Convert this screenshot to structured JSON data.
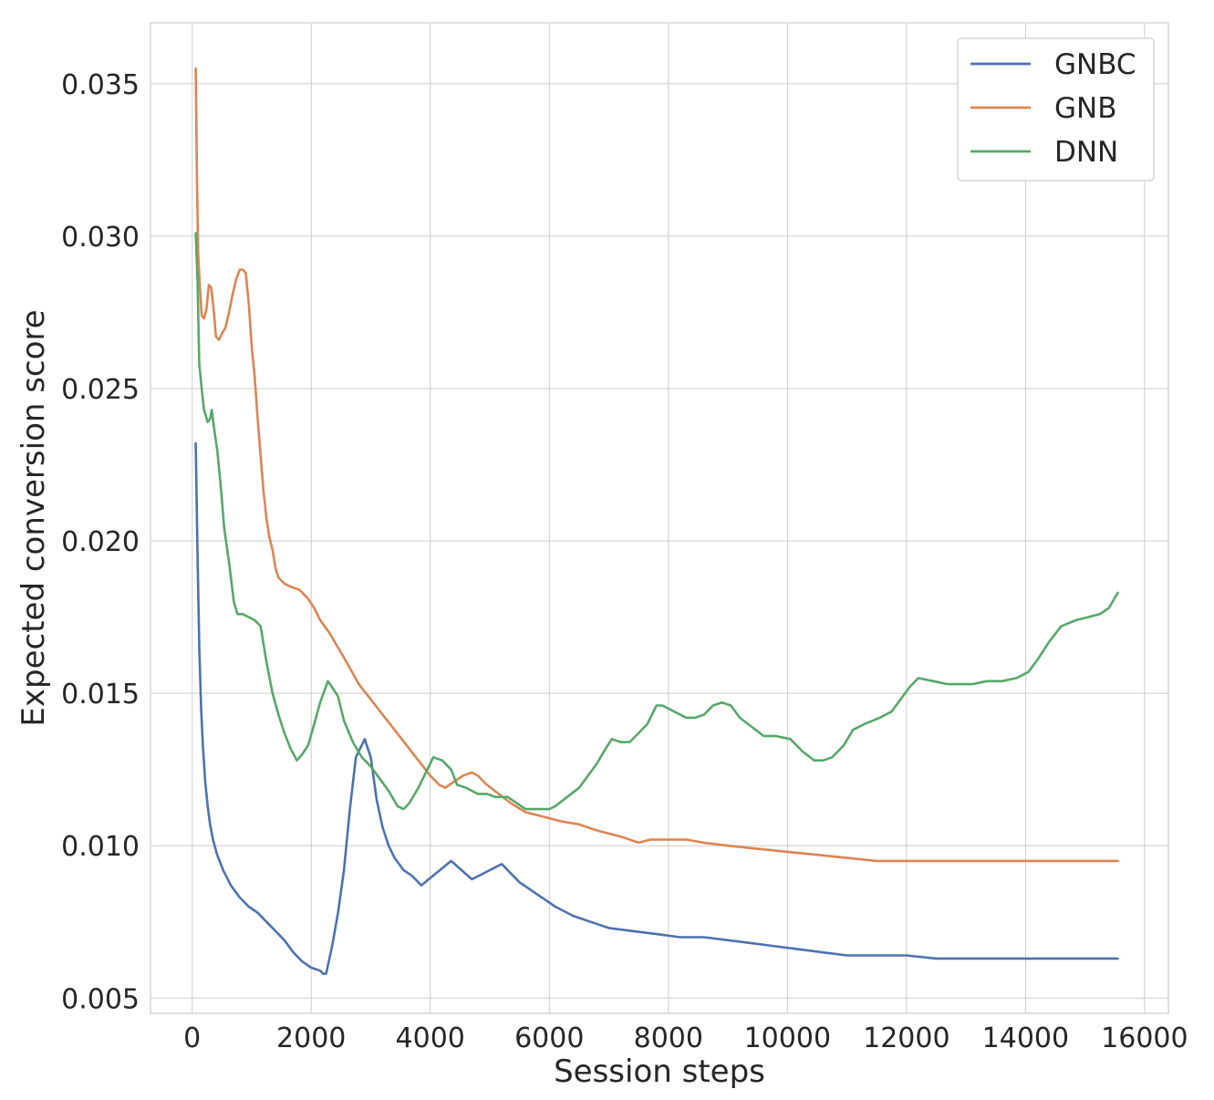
{
  "chart_data": {
    "type": "line",
    "title": "",
    "xlabel": "Session steps",
    "ylabel": "Expected conversion score",
    "xlim": [
      -700,
      16400
    ],
    "ylim": [
      0.0045,
      0.037
    ],
    "xticks": [
      0,
      2000,
      4000,
      6000,
      8000,
      10000,
      12000,
      14000,
      16000
    ],
    "xtick_labels": [
      "0",
      "2000",
      "4000",
      "6000",
      "8000",
      "10000",
      "12000",
      "14000",
      "16000"
    ],
    "yticks": [
      0.005,
      0.01,
      0.015,
      0.02,
      0.025,
      0.03,
      0.035
    ],
    "ytick_labels": [
      "0.005",
      "0.010",
      "0.015",
      "0.020",
      "0.025",
      "0.030",
      "0.035"
    ],
    "grid": true,
    "legend_position": "top-right",
    "series": [
      {
        "name": "GNBC",
        "color": "#4c72b0",
        "points": [
          [
            60,
            0.0232
          ],
          [
            90,
            0.0195
          ],
          [
            120,
            0.0165
          ],
          [
            150,
            0.0145
          ],
          [
            180,
            0.0133
          ],
          [
            220,
            0.0121
          ],
          [
            260,
            0.0113
          ],
          [
            300,
            0.0107
          ],
          [
            350,
            0.0102
          ],
          [
            420,
            0.0097
          ],
          [
            520,
            0.0092
          ],
          [
            650,
            0.0087
          ],
          [
            800,
            0.0083
          ],
          [
            950,
            0.008
          ],
          [
            1100,
            0.0078
          ],
          [
            1250,
            0.0075
          ],
          [
            1400,
            0.0072
          ],
          [
            1550,
            0.0069
          ],
          [
            1700,
            0.0065
          ],
          [
            1850,
            0.0062
          ],
          [
            2000,
            0.006
          ],
          [
            2150,
            0.0059
          ],
          [
            2200,
            0.0058
          ],
          [
            2250,
            0.0058
          ],
          [
            2350,
            0.0067
          ],
          [
            2450,
            0.0078
          ],
          [
            2550,
            0.0092
          ],
          [
            2650,
            0.0112
          ],
          [
            2750,
            0.0129
          ],
          [
            2900,
            0.0135
          ],
          [
            3000,
            0.0129
          ],
          [
            3100,
            0.0115
          ],
          [
            3200,
            0.0106
          ],
          [
            3300,
            0.01
          ],
          [
            3400,
            0.0096
          ],
          [
            3550,
            0.0092
          ],
          [
            3700,
            0.009
          ],
          [
            3850,
            0.0087
          ],
          [
            4100,
            0.0091
          ],
          [
            4350,
            0.0095
          ],
          [
            4700,
            0.0089
          ],
          [
            5200,
            0.0094
          ],
          [
            5500,
            0.0088
          ],
          [
            5800,
            0.0084
          ],
          [
            6100,
            0.008
          ],
          [
            6400,
            0.0077
          ],
          [
            6700,
            0.0075
          ],
          [
            7000,
            0.0073
          ],
          [
            7400,
            0.0072
          ],
          [
            7800,
            0.0071
          ],
          [
            8200,
            0.007
          ],
          [
            8600,
            0.007
          ],
          [
            9000,
            0.0069
          ],
          [
            9400,
            0.0068
          ],
          [
            9800,
            0.0067
          ],
          [
            10200,
            0.0066
          ],
          [
            10600,
            0.0065
          ],
          [
            11000,
            0.0064
          ],
          [
            11500,
            0.0064
          ],
          [
            12000,
            0.0064
          ],
          [
            12500,
            0.0063
          ],
          [
            13000,
            0.0063
          ],
          [
            13500,
            0.0063
          ],
          [
            14000,
            0.0063
          ],
          [
            14500,
            0.0063
          ],
          [
            15000,
            0.0063
          ],
          [
            15550,
            0.0063
          ]
        ]
      },
      {
        "name": "GNB",
        "color": "#dd8452",
        "points": [
          [
            60,
            0.0355
          ],
          [
            80,
            0.032
          ],
          [
            100,
            0.0295
          ],
          [
            130,
            0.0283
          ],
          [
            160,
            0.0274
          ],
          [
            200,
            0.0273
          ],
          [
            240,
            0.0276
          ],
          [
            280,
            0.0284
          ],
          [
            320,
            0.0283
          ],
          [
            360,
            0.0276
          ],
          [
            400,
            0.0267
          ],
          [
            450,
            0.0266
          ],
          [
            500,
            0.0268
          ],
          [
            560,
            0.027
          ],
          [
            620,
            0.0275
          ],
          [
            680,
            0.0281
          ],
          [
            740,
            0.0286
          ],
          [
            800,
            0.0289
          ],
          [
            850,
            0.0289
          ],
          [
            900,
            0.0288
          ],
          [
            950,
            0.0278
          ],
          [
            1000,
            0.0264
          ],
          [
            1050,
            0.0254
          ],
          [
            1100,
            0.024
          ],
          [
            1150,
            0.0228
          ],
          [
            1200,
            0.0216
          ],
          [
            1250,
            0.0207
          ],
          [
            1300,
            0.0201
          ],
          [
            1350,
            0.0197
          ],
          [
            1400,
            0.0191
          ],
          [
            1450,
            0.0188
          ],
          [
            1550,
            0.0186
          ],
          [
            1650,
            0.0185
          ],
          [
            1800,
            0.0184
          ],
          [
            1900,
            0.0182
          ],
          [
            1950,
            0.0181
          ],
          [
            2050,
            0.0178
          ],
          [
            2150,
            0.0174
          ],
          [
            2300,
            0.017
          ],
          [
            2450,
            0.0165
          ],
          [
            2600,
            0.016
          ],
          [
            2800,
            0.0153
          ],
          [
            3000,
            0.0148
          ],
          [
            3200,
            0.0143
          ],
          [
            3400,
            0.0138
          ],
          [
            3600,
            0.0133
          ],
          [
            3800,
            0.0128
          ],
          [
            4000,
            0.0123
          ],
          [
            4150,
            0.012
          ],
          [
            4250,
            0.0119
          ],
          [
            4400,
            0.0121
          ],
          [
            4550,
            0.0123
          ],
          [
            4700,
            0.0124
          ],
          [
            4800,
            0.0123
          ],
          [
            4950,
            0.012
          ],
          [
            5150,
            0.0117
          ],
          [
            5350,
            0.0114
          ],
          [
            5600,
            0.0111
          ],
          [
            5800,
            0.011
          ],
          [
            6000,
            0.0109
          ],
          [
            6200,
            0.0108
          ],
          [
            6500,
            0.0107
          ],
          [
            6800,
            0.0105
          ],
          [
            7200,
            0.0103
          ],
          [
            7500,
            0.0101
          ],
          [
            7700,
            0.0102
          ],
          [
            8000,
            0.0102
          ],
          [
            8300,
            0.0102
          ],
          [
            8600,
            0.0101
          ],
          [
            9000,
            0.01
          ],
          [
            9500,
            0.0099
          ],
          [
            10000,
            0.0098
          ],
          [
            10500,
            0.0097
          ],
          [
            11000,
            0.0096
          ],
          [
            11500,
            0.0095
          ],
          [
            12000,
            0.0095
          ],
          [
            12500,
            0.0095
          ],
          [
            13000,
            0.0095
          ],
          [
            13500,
            0.0095
          ],
          [
            14000,
            0.0095
          ],
          [
            14500,
            0.0095
          ],
          [
            15000,
            0.0095
          ],
          [
            15550,
            0.0095
          ]
        ]
      },
      {
        "name": "DNN",
        "color": "#55a868",
        "points": [
          [
            60,
            0.0301
          ],
          [
            90,
            0.0285
          ],
          [
            120,
            0.0258
          ],
          [
            160,
            0.025
          ],
          [
            200,
            0.0243
          ],
          [
            260,
            0.0239
          ],
          [
            300,
            0.024
          ],
          [
            330,
            0.0243
          ],
          [
            360,
            0.0238
          ],
          [
            420,
            0.023
          ],
          [
            480,
            0.0218
          ],
          [
            540,
            0.0204
          ],
          [
            620,
            0.0193
          ],
          [
            700,
            0.018
          ],
          [
            760,
            0.0176
          ],
          [
            850,
            0.0176
          ],
          [
            950,
            0.0175
          ],
          [
            1050,
            0.0174
          ],
          [
            1150,
            0.0172
          ],
          [
            1250,
            0.016
          ],
          [
            1350,
            0.015
          ],
          [
            1450,
            0.0143
          ],
          [
            1550,
            0.0137
          ],
          [
            1650,
            0.0132
          ],
          [
            1760,
            0.0128
          ],
          [
            1850,
            0.013
          ],
          [
            1950,
            0.0133
          ],
          [
            2050,
            0.014
          ],
          [
            2150,
            0.0147
          ],
          [
            2280,
            0.0154
          ],
          [
            2350,
            0.0152
          ],
          [
            2450,
            0.0149
          ],
          [
            2550,
            0.0141
          ],
          [
            2700,
            0.0134
          ],
          [
            2850,
            0.0129
          ],
          [
            3000,
            0.0126
          ],
          [
            3150,
            0.0122
          ],
          [
            3300,
            0.0118
          ],
          [
            3450,
            0.0113
          ],
          [
            3550,
            0.0112
          ],
          [
            3650,
            0.0114
          ],
          [
            3800,
            0.0119
          ],
          [
            3950,
            0.0125
          ],
          [
            4050,
            0.0129
          ],
          [
            4200,
            0.0128
          ],
          [
            4350,
            0.0125
          ],
          [
            4450,
            0.012
          ],
          [
            4600,
            0.0119
          ],
          [
            4800,
            0.0117
          ],
          [
            4950,
            0.0117
          ],
          [
            5100,
            0.0116
          ],
          [
            5300,
            0.0116
          ],
          [
            5450,
            0.0114
          ],
          [
            5600,
            0.0112
          ],
          [
            5800,
            0.0112
          ],
          [
            6000,
            0.0112
          ],
          [
            6100,
            0.0113
          ],
          [
            6300,
            0.0116
          ],
          [
            6500,
            0.0119
          ],
          [
            6650,
            0.0123
          ],
          [
            6800,
            0.0127
          ],
          [
            6950,
            0.0132
          ],
          [
            7050,
            0.0135
          ],
          [
            7200,
            0.0134
          ],
          [
            7350,
            0.0134
          ],
          [
            7500,
            0.0137
          ],
          [
            7650,
            0.014
          ],
          [
            7800,
            0.0146
          ],
          [
            7900,
            0.0146
          ],
          [
            8100,
            0.0144
          ],
          [
            8300,
            0.0142
          ],
          [
            8450,
            0.0142
          ],
          [
            8600,
            0.0143
          ],
          [
            8750,
            0.0146
          ],
          [
            8900,
            0.0147
          ],
          [
            9050,
            0.0146
          ],
          [
            9200,
            0.0142
          ],
          [
            9400,
            0.0139
          ],
          [
            9600,
            0.0136
          ],
          [
            9800,
            0.0136
          ],
          [
            10050,
            0.0135
          ],
          [
            10250,
            0.0131
          ],
          [
            10450,
            0.0128
          ],
          [
            10600,
            0.0128
          ],
          [
            10750,
            0.0129
          ],
          [
            10950,
            0.0133
          ],
          [
            11100,
            0.0138
          ],
          [
            11300,
            0.014
          ],
          [
            11550,
            0.0142
          ],
          [
            11750,
            0.0144
          ],
          [
            11900,
            0.0148
          ],
          [
            12050,
            0.0152
          ],
          [
            12200,
            0.0155
          ],
          [
            12450,
            0.0154
          ],
          [
            12700,
            0.0153
          ],
          [
            12900,
            0.0153
          ],
          [
            13100,
            0.0153
          ],
          [
            13350,
            0.0154
          ],
          [
            13600,
            0.0154
          ],
          [
            13850,
            0.0155
          ],
          [
            14050,
            0.0157
          ],
          [
            14200,
            0.0161
          ],
          [
            14400,
            0.0167
          ],
          [
            14600,
            0.0172
          ],
          [
            14850,
            0.0174
          ],
          [
            15050,
            0.0175
          ],
          [
            15250,
            0.0176
          ],
          [
            15400,
            0.0178
          ],
          [
            15550,
            0.0183
          ]
        ]
      }
    ]
  }
}
